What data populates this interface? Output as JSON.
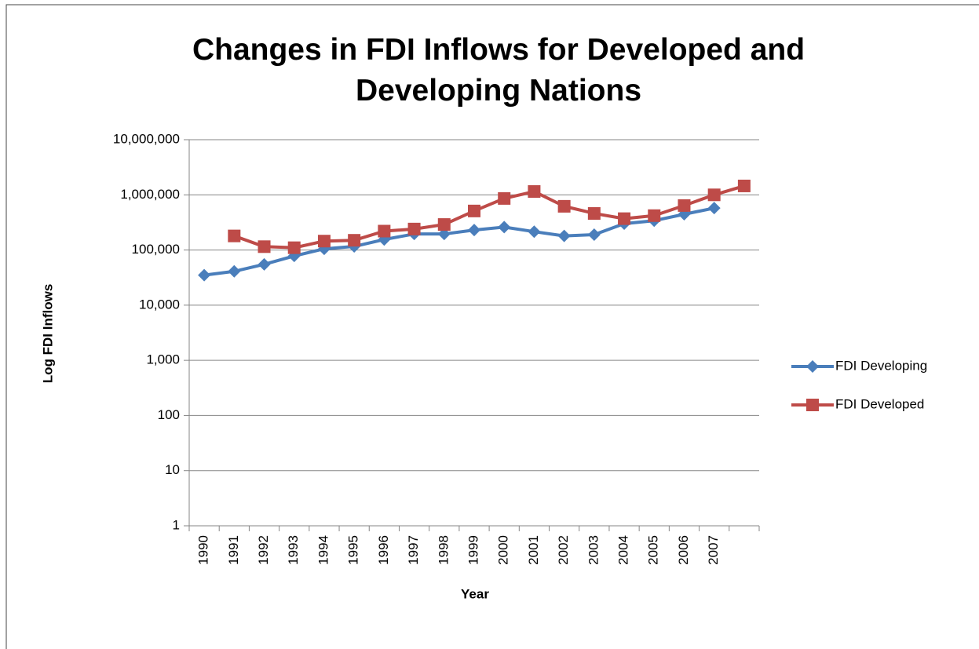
{
  "chart_data": {
    "type": "line",
    "title": "Changes in FDI Inflows for Developed and Developing Nations",
    "xlabel": "Year",
    "ylabel": "Log FDI Inflows",
    "categories": [
      "1990",
      "1991",
      "1992",
      "1993",
      "1994",
      "1995",
      "1996",
      "1997",
      "1998",
      "1999",
      "2000",
      "2001",
      "2002",
      "2003",
      "2004",
      "2005",
      "2006",
      "2007",
      null
    ],
    "series": [
      {
        "name": "FDI Developing",
        "color": "#4a7ebb",
        "marker": "diamond",
        "values": [
          35000,
          41000,
          55000,
          78000,
          105000,
          116000,
          155000,
          195000,
          195000,
          230000,
          260000,
          215000,
          180000,
          190000,
          300000,
          340000,
          445000,
          575000,
          null
        ]
      },
      {
        "name": "FDI Developed",
        "color": "#be4b48",
        "marker": "square",
        "values": [
          null,
          180000,
          115000,
          110000,
          145000,
          150000,
          220000,
          240000,
          290000,
          510000,
          860000,
          1150000,
          620000,
          460000,
          370000,
          420000,
          640000,
          1000000,
          1450000
        ]
      }
    ],
    "ylog": true,
    "ylim": [
      1,
      10000000
    ],
    "yticks": [
      1,
      10,
      100,
      {
        "value": 1000,
        "label": "1,000"
      },
      {
        "value": 10000,
        "label": "10,000"
      },
      {
        "value": 100000,
        "label": "100,000"
      },
      {
        "value": 1000000,
        "label": "1,000,000"
      },
      {
        "value": 10000000,
        "label": "10,000,000"
      }
    ],
    "grid": true,
    "legend": "right"
  }
}
